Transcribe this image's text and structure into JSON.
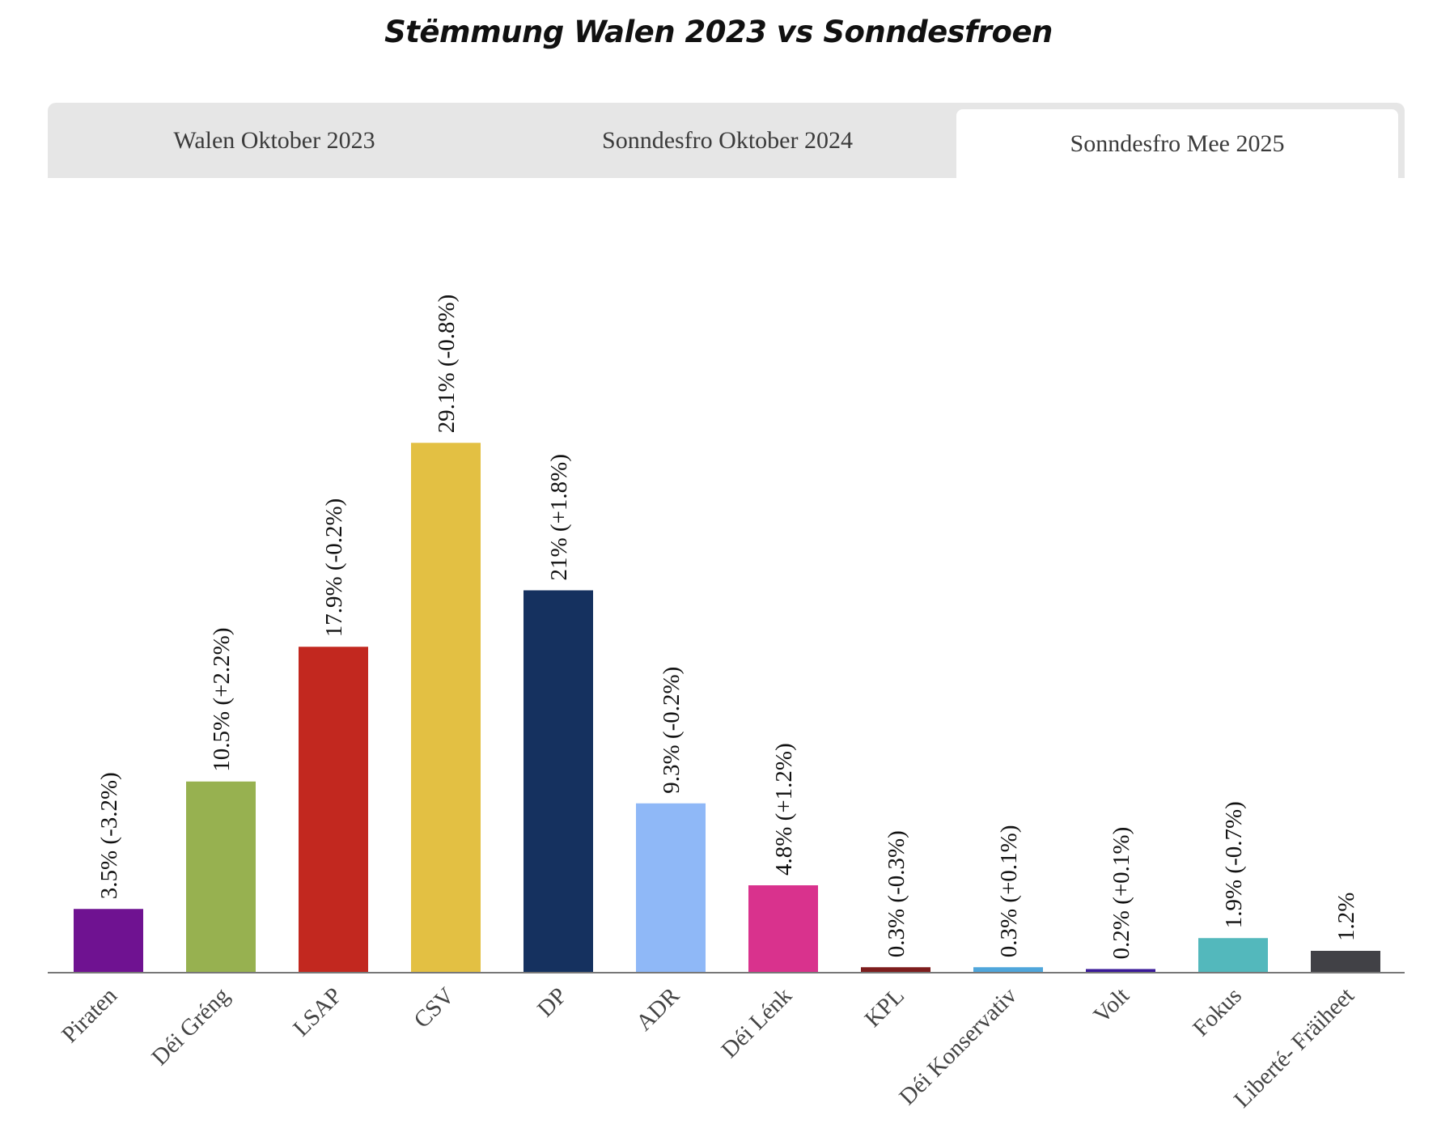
{
  "title": "Stëmmung Walen 2023 vs Sonndesfroen",
  "tabs": [
    {
      "label": "Walen Oktober 2023",
      "active": false
    },
    {
      "label": "Sonndesfro Oktober 2024",
      "active": false
    },
    {
      "label": "Sonndesfro Mee 2025",
      "active": true
    }
  ],
  "chart_data": {
    "type": "bar",
    "categories": [
      "Piraten",
      "Déi Gréng",
      "LSAP",
      "CSV",
      "DP",
      "ADR",
      "Déi Lénk",
      "KPL",
      "Déi Konservativ",
      "Volt",
      "Fokus",
      "Liberté- Fräiheet"
    ],
    "values": [
      3.5,
      10.5,
      17.9,
      29.1,
      21,
      9.3,
      4.8,
      0.3,
      0.3,
      0.2,
      1.9,
      1.2
    ],
    "data_labels": [
      "3.5% (-3.2%)",
      "10.5% (+2.2%)",
      "17.9% (-0.2%)",
      "29.1% (-0.8%)",
      "21% (+1.8%)",
      "9.3% (-0.2%)",
      "4.8% (+1.2%)",
      "0.3% (-0.3%)",
      "0.3% (+0.1%)",
      "0.2% (+0.1%)",
      "1.9% (-0.7%)",
      "1.2%"
    ],
    "colors": [
      "#6f1291",
      "#97b150",
      "#c2281f",
      "#e3c043",
      "#15315f",
      "#8fb8f7",
      "#d9328d",
      "#7d1d1d",
      "#4fa6db",
      "#3a1a99",
      "#53b8bc",
      "#414146"
    ],
    "ylim": [
      0,
      33
    ],
    "grid": false,
    "legend": "none"
  }
}
